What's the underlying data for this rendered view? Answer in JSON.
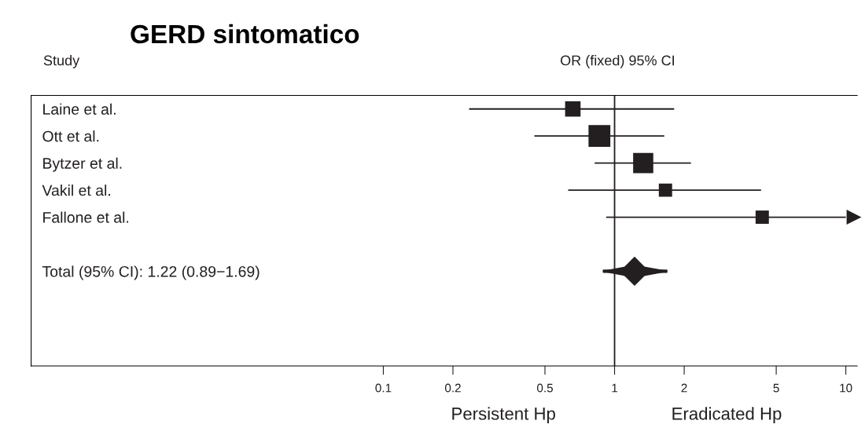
{
  "chart_data": {
    "type": "scatter",
    "orientation": "horizontal",
    "title": "GERD sintomatico",
    "categories": [
      "Laine et al.",
      "Ott et al.",
      "Bytzer et al.",
      "Vakil et al.",
      "Fallone et al.",
      null,
      "Total (95% CI): 1.22 (0.89−1.69)",
      null,
      null,
      null
    ],
    "series": [
      {
        "color": "#231f20",
        "marker": "square",
        "values": [
          0.66,
          0.86,
          1.33,
          1.66,
          4.35,
          null,
          null,
          null,
          null,
          null
        ],
        "sizes": [
          0.5,
          1,
          0.85,
          0.37,
          0.37,
          null,
          null,
          null,
          null,
          null
        ],
        "errors": [
          [
            0.235,
            1.81
          ],
          [
            0.45,
            1.64
          ],
          [
            0.82,
            2.14
          ],
          [
            0.63,
            4.3
          ],
          [
            0.92,
            10
          ],
          null,
          null,
          null,
          null,
          null
        ]
      },
      {
        "color": "#231f20",
        "marker": "diamond",
        "values": [
          null,
          null,
          null,
          null,
          null,
          null,
          1.22,
          null,
          null,
          null
        ],
        "errors": [
          null,
          null,
          null,
          null,
          null,
          null,
          [
            0.89,
            1.69
          ],
          null,
          null,
          null
        ]
      }
    ],
    "log": "x",
    "xlim": [
      0.003,
      11.2
    ],
    "xticks": [
      0.1,
      0.2,
      0.5,
      1,
      2,
      5,
      10
    ],
    "ref_lines": [
      {
        "axis": "x",
        "value": 1,
        "color": "#231f20"
      }
    ],
    "annotations": [
      "Study",
      "OR (fixed) 95% CI",
      "Persistent Hp",
      "Eradicated Hp"
    ],
    "grid": false
  }
}
